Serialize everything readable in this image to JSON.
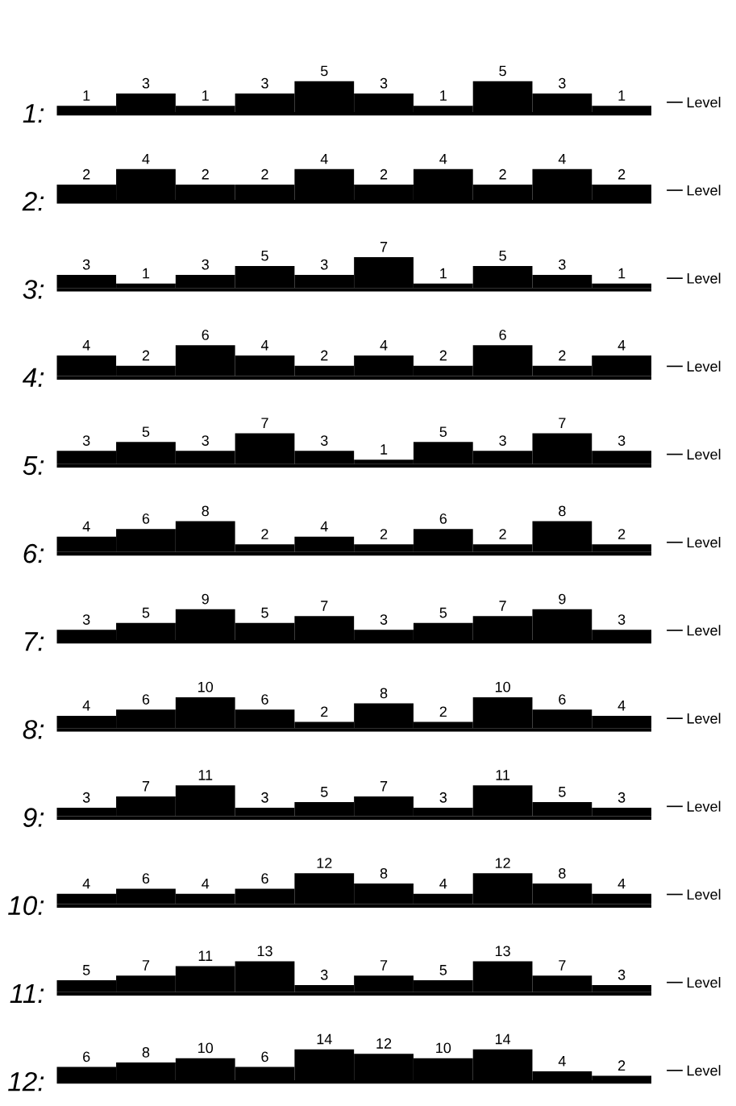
{
  "chart_data": [
    {
      "type": "bar",
      "title": "1:",
      "categories": [
        null,
        null,
        null,
        null,
        null,
        null,
        null,
        null,
        null,
        null
      ],
      "series": [
        {
          "name": "Level",
          "color": "#000000",
          "values": [
            1,
            3,
            1,
            3,
            5,
            3,
            1,
            5,
            3,
            1
          ]
        }
      ],
      "data_labels": true,
      "grid": false,
      "legend": "right"
    },
    {
      "type": "bar",
      "title": "2:",
      "categories": [
        null,
        null,
        null,
        null,
        null,
        null,
        null,
        null,
        null,
        null
      ],
      "series": [
        {
          "name": "Level",
          "color": "#000000",
          "values": [
            2,
            4,
            2,
            2,
            4,
            2,
            4,
            2,
            4,
            2
          ]
        }
      ],
      "data_labels": true,
      "grid": false,
      "legend": "right"
    },
    {
      "type": "bar",
      "title": "3:",
      "categories": [
        null,
        null,
        null,
        null,
        null,
        null,
        null,
        null,
        null,
        null
      ],
      "series": [
        {
          "name": "Level",
          "color": "#000000",
          "values": [
            3,
            1,
            3,
            5,
            3,
            7,
            1,
            5,
            3,
            1
          ]
        }
      ],
      "data_labels": true,
      "grid": false,
      "legend": "right"
    },
    {
      "type": "bar",
      "title": "4:",
      "categories": [
        null,
        null,
        null,
        null,
        null,
        null,
        null,
        null,
        null,
        null
      ],
      "series": [
        {
          "name": "Level",
          "color": "#000000",
          "values": [
            4,
            2,
            6,
            4,
            2,
            4,
            2,
            6,
            2,
            4
          ]
        }
      ],
      "data_labels": true,
      "grid": false,
      "legend": "right"
    },
    {
      "type": "bar",
      "title": "5:",
      "categories": [
        null,
        null,
        null,
        null,
        null,
        null,
        null,
        null,
        null,
        null
      ],
      "series": [
        {
          "name": "Level",
          "color": "#000000",
          "values": [
            3,
            5,
            3,
            7,
            3,
            1,
            5,
            3,
            7,
            3
          ]
        }
      ],
      "data_labels": true,
      "grid": false,
      "legend": "right"
    },
    {
      "type": "bar",
      "title": "6:",
      "categories": [
        null,
        null,
        null,
        null,
        null,
        null,
        null,
        null,
        null,
        null
      ],
      "series": [
        {
          "name": "Level",
          "color": "#000000",
          "values": [
            4,
            6,
            8,
            2,
            4,
            2,
            6,
            2,
            8,
            2
          ]
        }
      ],
      "data_labels": true,
      "grid": false,
      "legend": "right"
    },
    {
      "type": "bar",
      "title": "7:",
      "categories": [
        null,
        null,
        null,
        null,
        null,
        null,
        null,
        null,
        null,
        null
      ],
      "series": [
        {
          "name": "Level",
          "color": "#000000",
          "values": [
            3,
            5,
            9,
            5,
            7,
            3,
            5,
            7,
            9,
            3
          ]
        }
      ],
      "data_labels": true,
      "grid": false,
      "legend": "right"
    },
    {
      "type": "bar",
      "title": "8:",
      "categories": [
        null,
        null,
        null,
        null,
        null,
        null,
        null,
        null,
        null,
        null
      ],
      "series": [
        {
          "name": "Level",
          "color": "#000000",
          "values": [
            4,
            6,
            10,
            6,
            2,
            8,
            2,
            10,
            6,
            4
          ]
        }
      ],
      "data_labels": true,
      "grid": false,
      "legend": "right"
    },
    {
      "type": "bar",
      "title": "9:",
      "categories": [
        null,
        null,
        null,
        null,
        null,
        null,
        null,
        null,
        null,
        null
      ],
      "series": [
        {
          "name": "Level",
          "color": "#000000",
          "values": [
            3,
            7,
            11,
            3,
            5,
            7,
            3,
            11,
            5,
            3
          ]
        }
      ],
      "data_labels": true,
      "grid": false,
      "legend": "right"
    },
    {
      "type": "bar",
      "title": "10:",
      "categories": [
        null,
        null,
        null,
        null,
        null,
        null,
        null,
        null,
        null,
        null
      ],
      "series": [
        {
          "name": "Level",
          "color": "#000000",
          "values": [
            4,
            6,
            4,
            6,
            12,
            8,
            4,
            12,
            8,
            4
          ]
        }
      ],
      "data_labels": true,
      "grid": false,
      "legend": "right"
    },
    {
      "type": "bar",
      "title": "11:",
      "categories": [
        null,
        null,
        null,
        null,
        null,
        null,
        null,
        null,
        null,
        null
      ],
      "series": [
        {
          "name": "Level",
          "color": "#000000",
          "values": [
            5,
            7,
            11,
            13,
            3,
            7,
            5,
            13,
            7,
            3
          ]
        }
      ],
      "data_labels": true,
      "grid": false,
      "legend": "right"
    },
    {
      "type": "bar",
      "title": "12:",
      "categories": [
        null,
        null,
        null,
        null,
        null,
        null,
        null,
        null,
        null,
        null
      ],
      "series": [
        {
          "name": "Level",
          "color": "#000000",
          "values": [
            6,
            8,
            10,
            6,
            14,
            12,
            10,
            14,
            4,
            2
          ]
        }
      ],
      "data_labels": true,
      "grid": false,
      "legend": "right"
    }
  ]
}
